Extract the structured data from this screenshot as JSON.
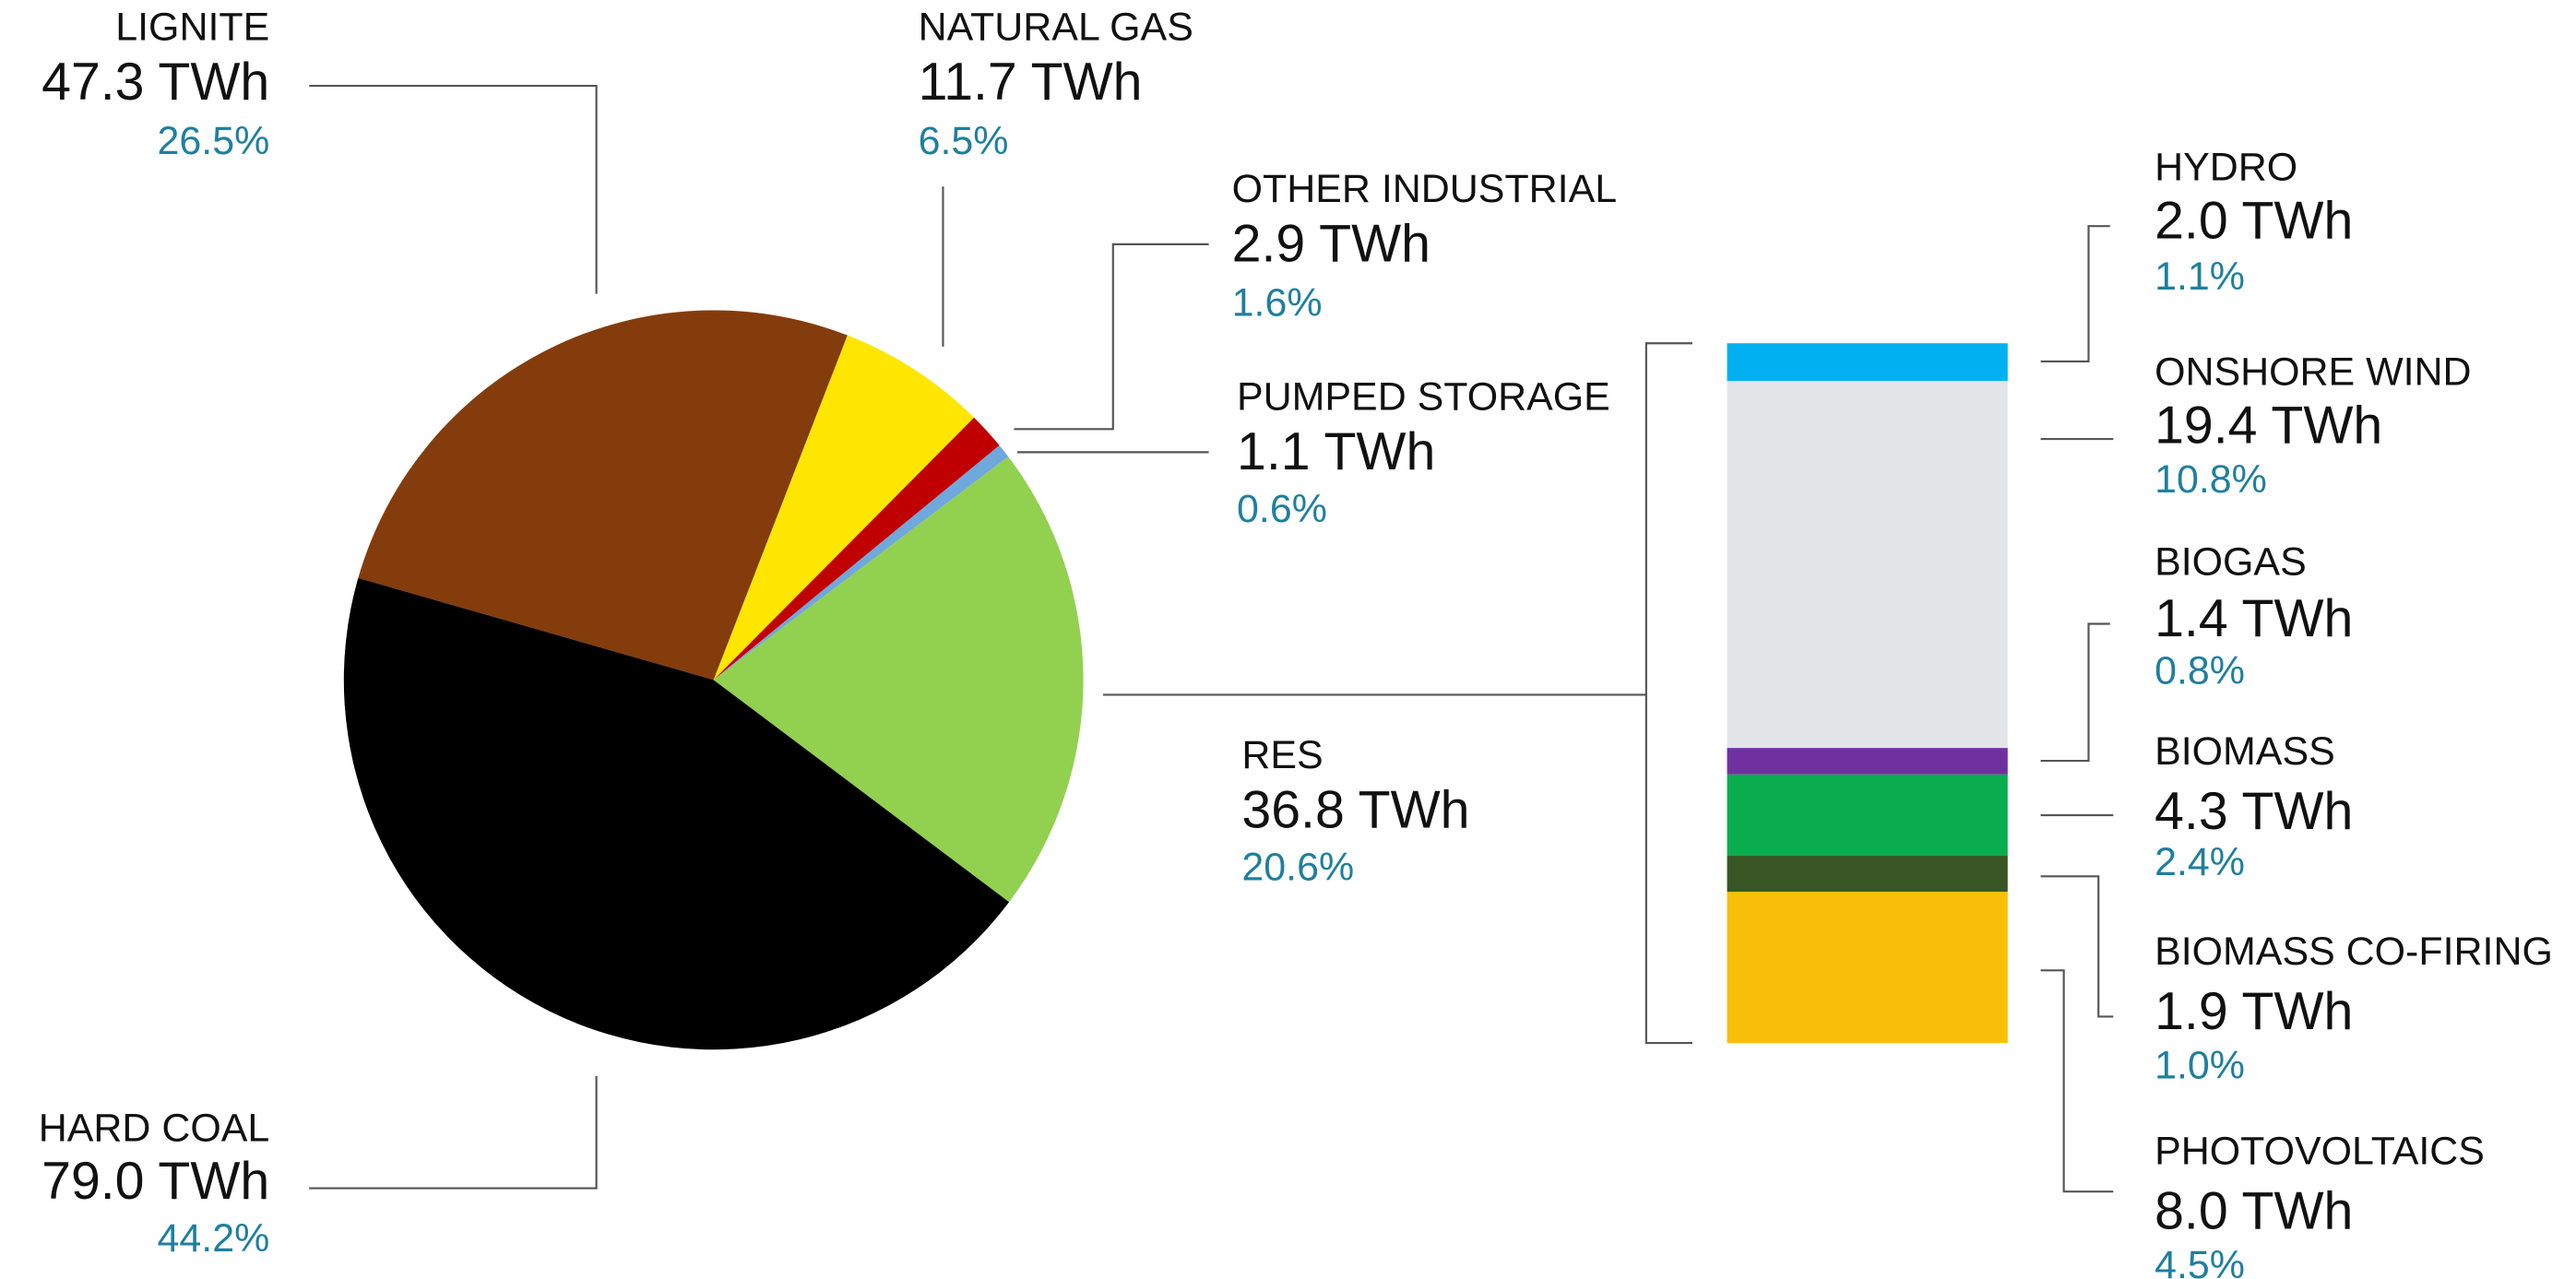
{
  "chart_data": [
    {
      "type": "pie",
      "categories": [
        "LIGNITE",
        "NATURAL GAS",
        "OTHER INDUSTRIAL",
        "PUMPED STORAGE",
        "RES",
        "HARD COAL"
      ],
      "values": [
        47.3,
        11.7,
        2.9,
        1.1,
        36.8,
        79.0
      ],
      "value_labels": [
        "47.3 TWh",
        "11.7 TWh",
        "2.9 TWh",
        "1.1 TWh",
        "36.8 TWh",
        "79.0 TWh"
      ],
      "share_labels": [
        "26.5%",
        "6.5%",
        "1.6%",
        "0.6%",
        "20.6%",
        "44.2%"
      ],
      "colors": [
        "#843c0c",
        "#ffe600",
        "#c00000",
        "#6fa8dc",
        "#92d050",
        "#000000"
      ]
    },
    {
      "type": "stacked_bar",
      "categories": [
        "HYDRO",
        "ONSHORE WIND",
        "BIOGAS",
        "BIOMASS",
        "BIOMASS CO-FIRING",
        "PHOTOVOLTAICS"
      ],
      "values": [
        2.0,
        19.4,
        1.4,
        4.3,
        1.9,
        8.0
      ],
      "value_labels": [
        "2.0 TWh",
        "19.4 TWh",
        "1.4 TWh",
        "4.3 TWh",
        "1.9 TWh",
        "8.0 TWh"
      ],
      "share_labels": [
        "1.1%",
        "10.8%",
        "0.8%",
        "2.4%",
        "1.0%",
        "4.5%"
      ],
      "colors": [
        "#00b0f0",
        "#e3e4e8",
        "#7030a0",
        "#0aad4d",
        "#375623",
        "#f9be07"
      ]
    }
  ]
}
